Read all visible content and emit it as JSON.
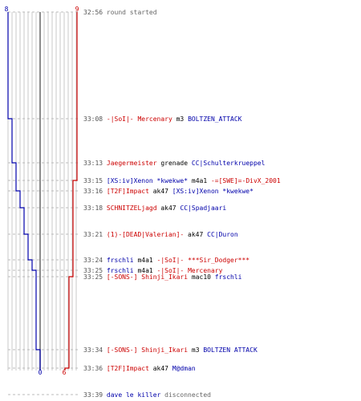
{
  "score": {
    "top_left": "8",
    "top_right": "9",
    "bottom_left": "0",
    "bottom_right": "6"
  },
  "colors": {
    "team_a": "#0000aa",
    "team_b": "#cc0000",
    "time": "#555555",
    "gray": "#666666"
  },
  "events": [
    {
      "time": "32:56",
      "parts": [
        {
          "t": "round started",
          "c": "gry"
        }
      ]
    },
    {
      "time": "33:08",
      "parts": [
        {
          "t": "-|SoI|- Mercenary",
          "c": "red"
        },
        {
          "t": " m3 ",
          "c": "blk"
        },
        {
          "t": "BOLTZEN_ATTACK",
          "c": "blue"
        }
      ]
    },
    {
      "time": "33:13",
      "parts": [
        {
          "t": "Jaegermeister",
          "c": "red"
        },
        {
          "t": " grenade ",
          "c": "blk"
        },
        {
          "t": "CC|Schulterkrueppel",
          "c": "blue"
        }
      ]
    },
    {
      "time": "33:15",
      "parts": [
        {
          "t": "[XS:iv]Xenon *kwekwe*",
          "c": "blue"
        },
        {
          "t": " m4a1 ",
          "c": "blk"
        },
        {
          "t": "-=[SWE]=-DivX_2001",
          "c": "red"
        }
      ]
    },
    {
      "time": "33:16",
      "parts": [
        {
          "t": "[T2F]Impact",
          "c": "red"
        },
        {
          "t": " ak47 ",
          "c": "blk"
        },
        {
          "t": "[XS:iv]Xenon *kwekwe*",
          "c": "blue"
        }
      ]
    },
    {
      "time": "33:18",
      "parts": [
        {
          "t": "SCHNITZELjagd",
          "c": "red"
        },
        {
          "t": " ak47 ",
          "c": "blk"
        },
        {
          "t": "CC|Spadjaari",
          "c": "blue"
        }
      ]
    },
    {
      "time": "33:21",
      "parts": [
        {
          "t": "(1)-[DEAD|Valerian]-",
          "c": "red"
        },
        {
          "t": " ak47 ",
          "c": "blk"
        },
        {
          "t": "CC|Duron",
          "c": "blue"
        }
      ]
    },
    {
      "time": "33:24",
      "parts": [
        {
          "t": "frschli",
          "c": "blue"
        },
        {
          "t": " m4a1 ",
          "c": "blk"
        },
        {
          "t": "-|SoI|- ***Sir_Dodger***",
          "c": "red"
        }
      ]
    },
    {
      "time": "33:25",
      "parts": [
        {
          "t": "frschli",
          "c": "blue"
        },
        {
          "t": " m4a1 ",
          "c": "blk"
        },
        {
          "t": "-|SoI|- Mercenary",
          "c": "red"
        }
      ]
    },
    {
      "time": "33:25",
      "parts": [
        {
          "t": "[-SONS-] Shinji_Ikari",
          "c": "red"
        },
        {
          "t": " mac10 ",
          "c": "blk"
        },
        {
          "t": "frschli",
          "c": "blue"
        }
      ]
    },
    {
      "time": "33:34",
      "parts": [
        {
          "t": "[-SONS-] Shinji_Ikari",
          "c": "red"
        },
        {
          "t": " m3 ",
          "c": "blk"
        },
        {
          "t": "BOLTZEN ATTACK",
          "c": "blue"
        }
      ]
    },
    {
      "time": "33:36",
      "parts": [
        {
          "t": "[T2F]Impact",
          "c": "red"
        },
        {
          "t": " ak47 ",
          "c": "blk"
        },
        {
          "t": "M@dman",
          "c": "blue"
        }
      ]
    },
    {
      "time": "33:39",
      "parts": [
        {
          "t": "dave le killer",
          "c": "blue"
        },
        {
          "t": " disconnected",
          "c": "gry"
        }
      ]
    }
  ],
  "chart_data": {
    "type": "line",
    "x_label": "",
    "series": [
      {
        "name": "",
        "color": "#0000aa",
        "values": [
          8,
          7,
          6,
          5,
          4,
          3,
          2,
          1,
          0
        ]
      },
      {
        "name": "",
        "color": "#cc0000",
        "values": [
          9,
          8,
          7,
          6
        ]
      }
    ]
  }
}
